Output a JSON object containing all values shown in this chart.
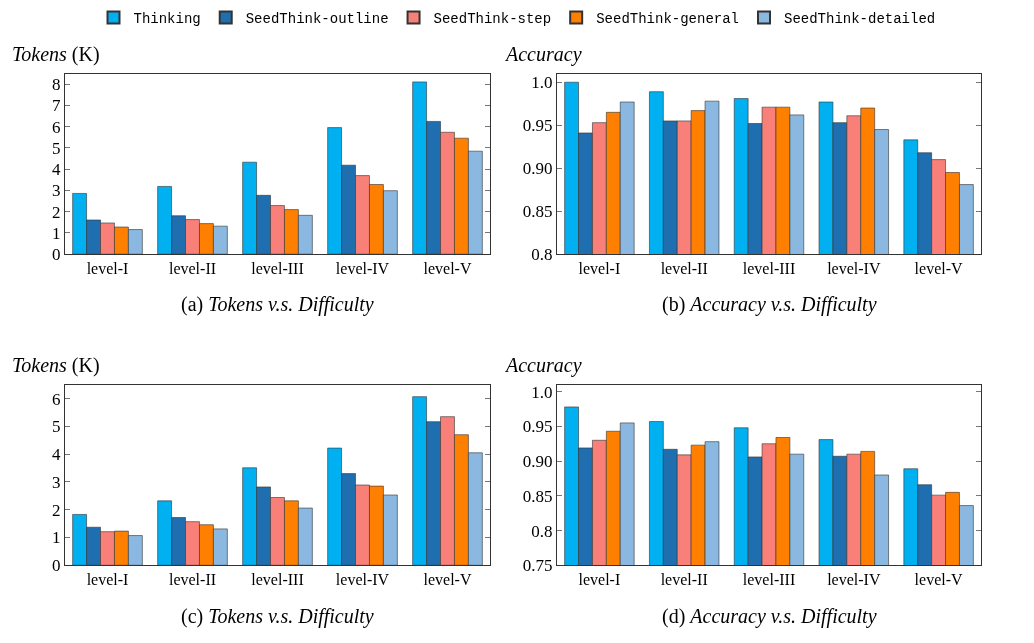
{
  "chart_data": [
    {
      "type": "bar",
      "title": "(a) Tokens v.s. Difficulty",
      "ylabel": "Tokens (K)",
      "categories": [
        "level-I",
        "level-II",
        "level-III",
        "level-IV",
        "level-V"
      ],
      "ylim": [
        0,
        8.5
      ],
      "yticks": [
        0,
        1,
        2,
        3,
        4,
        5,
        6,
        7,
        8
      ],
      "legend": "top",
      "series": [
        {
          "name": "Thinking",
          "color": "#00b0f0",
          "values": [
            2.86,
            3.19,
            4.33,
            5.96,
            8.11
          ]
        },
        {
          "name": "SeedThink-outline",
          "color": "#1f6fb0",
          "values": [
            1.61,
            1.81,
            2.77,
            4.19,
            6.25
          ]
        },
        {
          "name": "SeedThink-step",
          "color": "#f88078",
          "values": [
            1.47,
            1.63,
            2.29,
            3.7,
            5.74
          ]
        },
        {
          "name": "SeedThink-general",
          "color": "#ff8000",
          "values": [
            1.28,
            1.44,
            2.1,
            3.28,
            5.46
          ]
        },
        {
          "name": "SeedThink-detailed",
          "color": "#8ab8e0",
          "values": [
            1.16,
            1.32,
            1.83,
            2.99,
            4.85
          ]
        }
      ]
    },
    {
      "type": "bar",
      "title": "(b) Accuracy v.s. Difficulty",
      "ylabel": "Accuracy",
      "categories": [
        "level-I",
        "level-II",
        "level-III",
        "level-IV",
        "level-V"
      ],
      "ylim": [
        0.8,
        1.01
      ],
      "yticks": [
        {
          "value": 0.8,
          "label": "0.8"
        },
        0.85,
        {
          "value": 0.9,
          "label": "0.90"
        },
        0.95,
        {
          "value": 1.0,
          "label": "1.0"
        }
      ],
      "series": [
        {
          "color": "#00b0f0",
          "values": [
            1.0,
            0.989,
            0.981,
            0.977,
            0.933
          ]
        },
        {
          "color": "#1f6fb0",
          "values": [
            0.941,
            0.955,
            0.952,
            0.953,
            0.918
          ]
        },
        {
          "color": "#f88078",
          "values": [
            0.953,
            0.955,
            0.971,
            0.961,
            0.91
          ]
        },
        {
          "color": "#ff8000",
          "values": [
            0.965,
            0.967,
            0.971,
            0.97,
            0.895
          ]
        },
        {
          "color": "#8ab8e0",
          "values": [
            0.977,
            0.978,
            0.962,
            0.945,
            0.881
          ]
        }
      ]
    },
    {
      "type": "bar",
      "title": "(c) Tokens v.s. Difficulty",
      "ylabel": "Tokens (K)",
      "categories": [
        "level-I",
        "level-II",
        "level-III",
        "level-IV",
        "level-V"
      ],
      "ylim": [
        0,
        6.5
      ],
      "yticks": [
        0,
        1,
        2,
        3,
        4,
        5,
        6
      ],
      "series": [
        {
          "color": "#00b0f0",
          "values": [
            1.83,
            2.32,
            3.51,
            4.22,
            6.07
          ]
        },
        {
          "color": "#1f6fb0",
          "values": [
            1.37,
            1.72,
            2.82,
            3.3,
            5.17
          ]
        },
        {
          "color": "#f88078",
          "values": [
            1.21,
            1.57,
            2.44,
            2.89,
            5.35
          ]
        },
        {
          "color": "#ff8000",
          "values": [
            1.23,
            1.46,
            2.32,
            2.85,
            4.7
          ]
        },
        {
          "color": "#8ab8e0",
          "values": [
            1.07,
            1.31,
            2.06,
            2.53,
            4.05
          ]
        }
      ]
    },
    {
      "type": "bar",
      "title": "(d) Accuracy v.s. Difficulty",
      "ylabel": "Accuracy",
      "categories": [
        "level-I",
        "level-II",
        "level-III",
        "level-IV",
        "level-V"
      ],
      "ylim": [
        0.75,
        1.01
      ],
      "yticks": [
        0.75,
        {
          "value": 0.8,
          "label": "0.8"
        },
        0.85,
        {
          "value": 0.9,
          "label": "0.90"
        },
        0.95,
        {
          "value": 1.0,
          "label": "1.0"
        }
      ],
      "series": [
        {
          "color": "#00b0f0",
          "values": [
            0.978,
            0.957,
            0.948,
            0.931,
            0.889
          ]
        },
        {
          "color": "#1f6fb0",
          "values": [
            0.919,
            0.917,
            0.906,
            0.907,
            0.866
          ]
        },
        {
          "color": "#f88078",
          "values": [
            0.93,
            0.909,
            0.925,
            0.91,
            0.851
          ]
        },
        {
          "color": "#ff8000",
          "values": [
            0.943,
            0.923,
            0.934,
            0.914,
            0.855
          ]
        },
        {
          "color": "#8ab8e0",
          "values": [
            0.955,
            0.928,
            0.91,
            0.88,
            0.836
          ]
        }
      ]
    }
  ]
}
